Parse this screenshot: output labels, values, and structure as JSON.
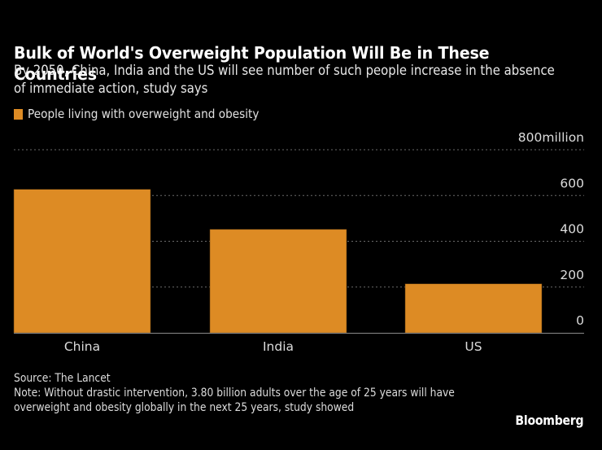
{
  "header": {
    "title": "Bulk of World's Overweight Population Will Be in These Countries",
    "subtitle": "By 2050, China, India and the US will see number of such people increase in the absence of immediate action, study says"
  },
  "legend": {
    "label": "People living with overweight and obesity",
    "color": "#DD8B24"
  },
  "footer": {
    "source": "Source: The Lancet",
    "note": "Note: Without drastic intervention, 3.80 billion adults over the age of 25 years will have overweight and obesity globally in the next 25 years, study showed",
    "brand": "Bloomberg"
  },
  "chart_data": {
    "type": "bar",
    "title": "Bulk of World's Overweight Population Will Be in These Countries",
    "categories": [
      "China",
      "India",
      "US"
    ],
    "series": [
      {
        "name": "People living with overweight and obesity",
        "values": [
          627,
          452,
          214
        ],
        "color": "#DD8B24"
      }
    ],
    "xlabel": "",
    "ylabel": "",
    "unit": "million",
    "ylim": [
      0,
      800
    ],
    "yticks": [
      0,
      200,
      400,
      600,
      800
    ],
    "ytick_labels": [
      "0",
      "200",
      "400",
      "600",
      "800million"
    ],
    "grid": true,
    "legend_position": "top-left",
    "y_axis_side": "right"
  }
}
